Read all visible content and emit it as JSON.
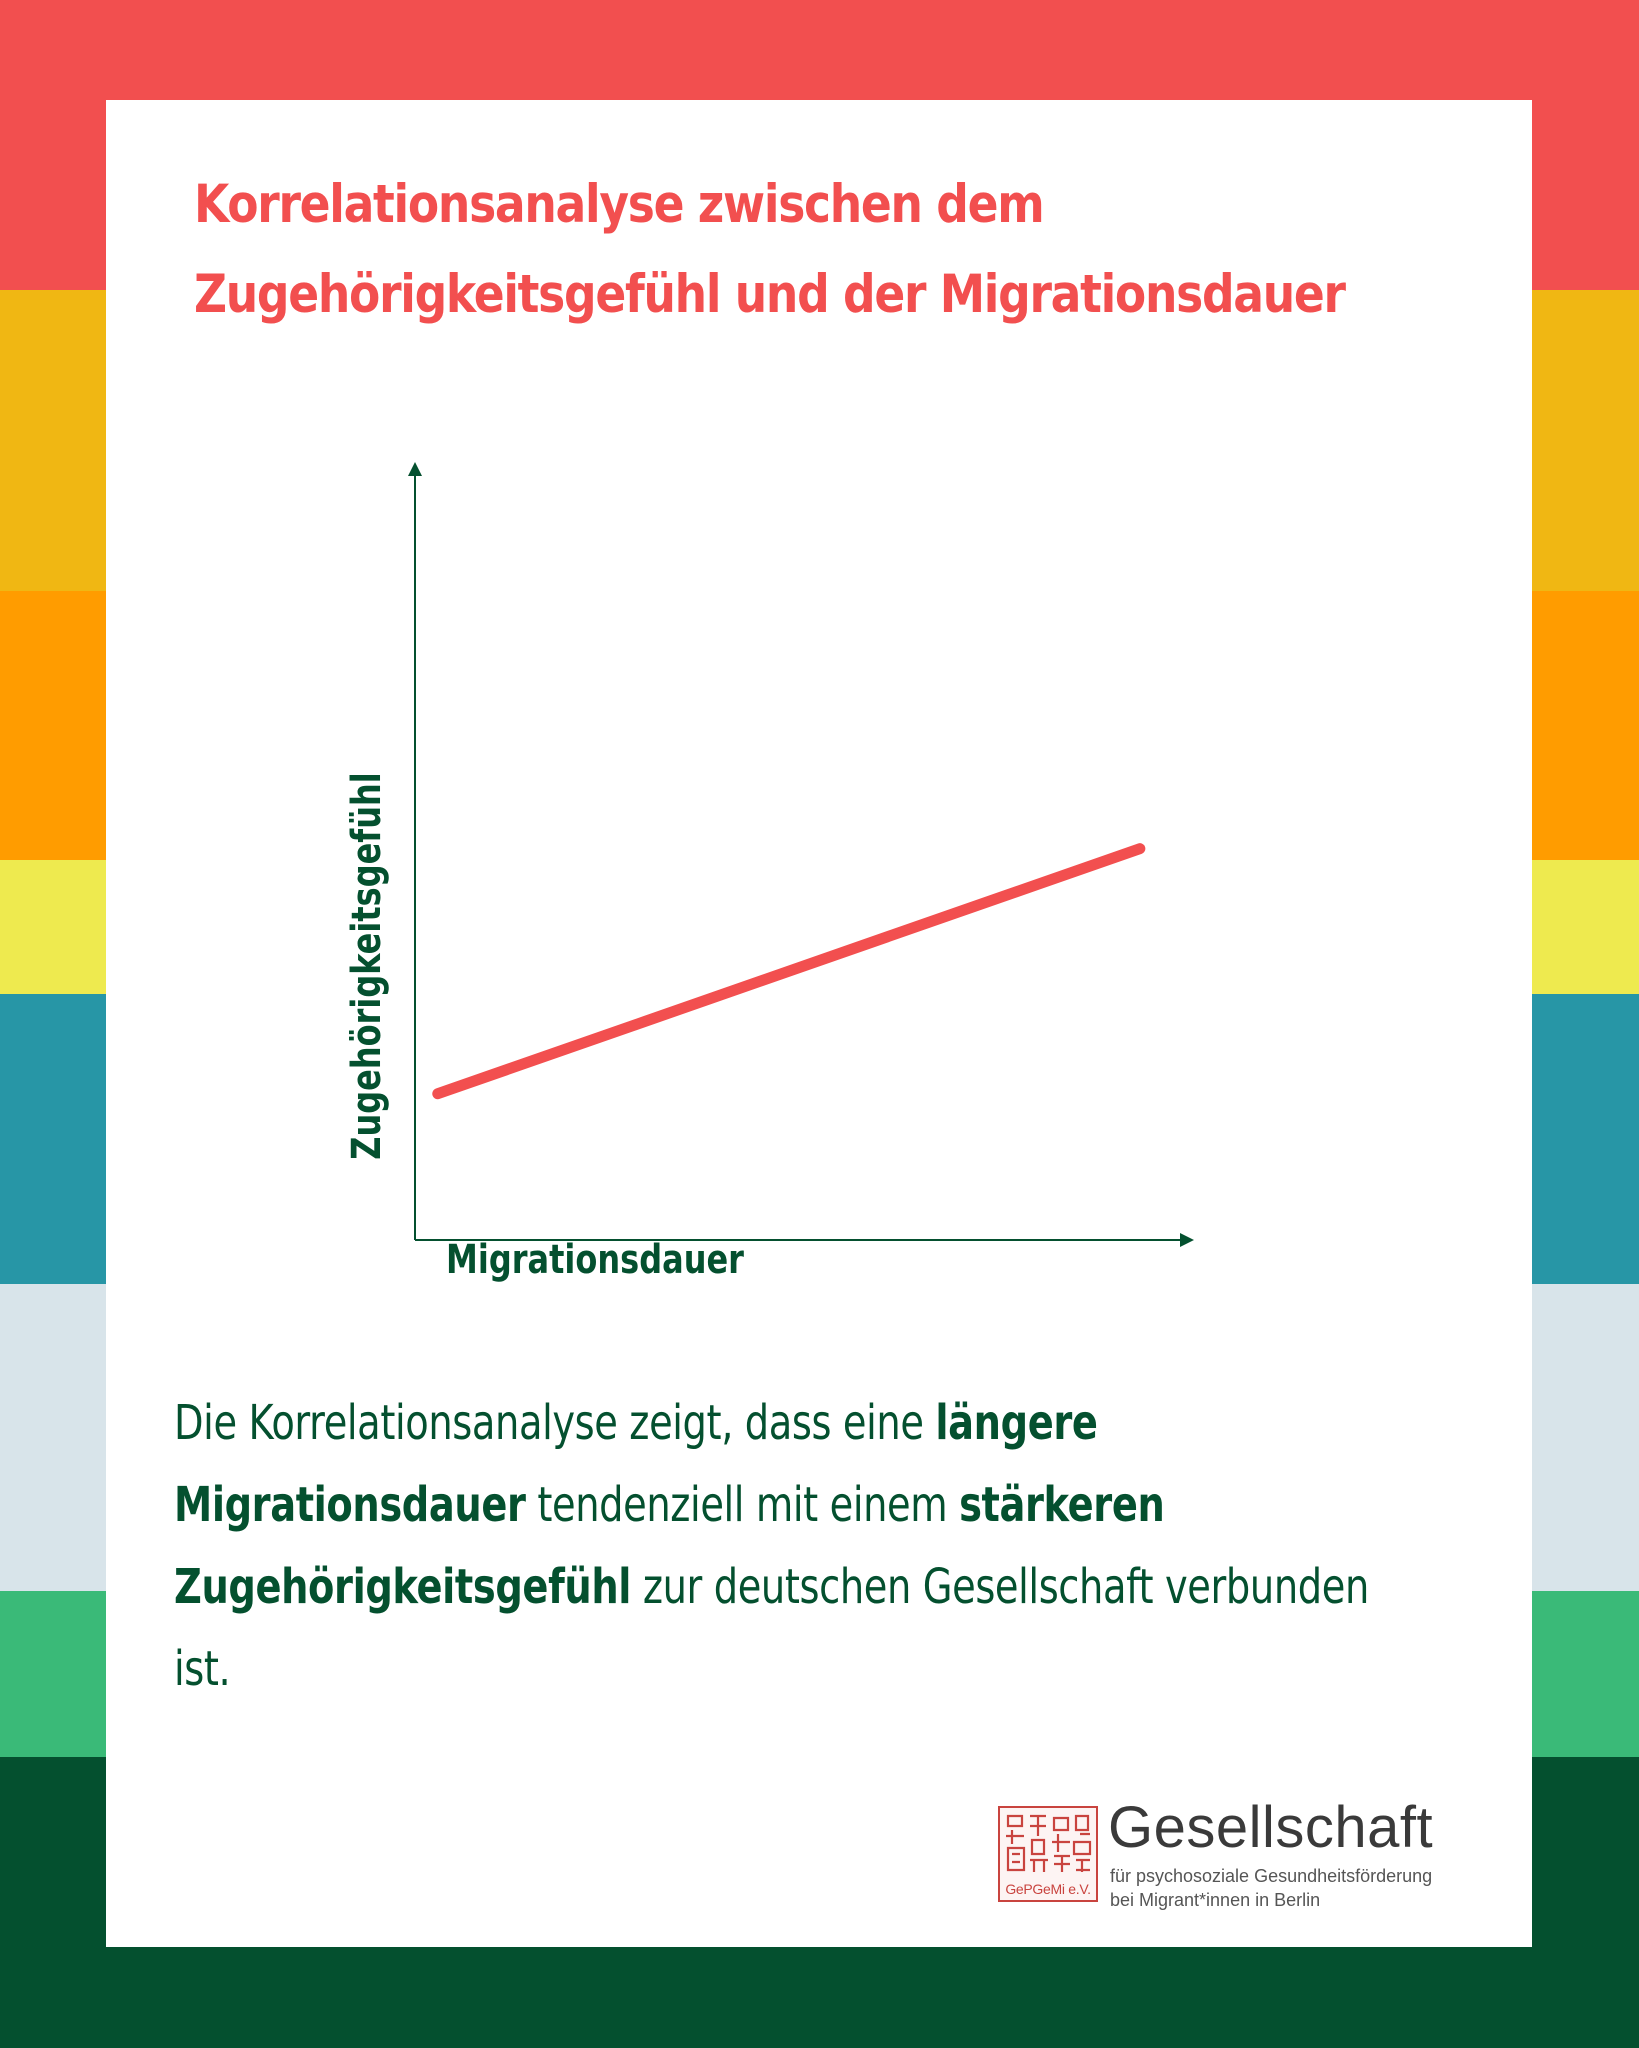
{
  "colors": {
    "accent_red": "#f24f4f",
    "dark_green": "#04502f",
    "seal_red": "#c9443f",
    "card": "#ffffff",
    "stripes": [
      "#f24f4f",
      "#f0b713",
      "#ff9c00",
      "#eeea4f",
      "#2796a6",
      "#d8e4ea",
      "#3aba78",
      "#04502f"
    ]
  },
  "header": {
    "title_line1": "Korrelationsanalyse zwischen dem",
    "title_line2": "Zugehörigkeitsgefühl und der Migrationsdauer"
  },
  "chart_data": {
    "type": "line",
    "xlabel": "Migrationsdauer",
    "ylabel": "Zugehörigkeitsgefühl",
    "xlim": [
      0,
      1
    ],
    "ylim": [
      0,
      1
    ],
    "axis_ticks": false,
    "grid": false,
    "series": [
      {
        "x": [
          0.03,
          0.955
        ],
        "y": [
          0.188,
          0.503
        ]
      }
    ]
  },
  "body": {
    "s1": "Die Korrelationsanalyse zeigt, dass eine ",
    "b1": "längere Migrationsdauer",
    "s2": " tendenziell mit einem ",
    "b2": "stärkeren Zugehörigkeitsgefühl",
    "s3": " zur deutschen Gesellschaft verbunden ist."
  },
  "logo": {
    "name": "Gesellschaft",
    "subtitle_line1": "für psychosoziale Gesundheitsförderung",
    "subtitle_line2": "bei Migrant*innen in Berlin",
    "seal_text": "GePGeMi e.V."
  }
}
